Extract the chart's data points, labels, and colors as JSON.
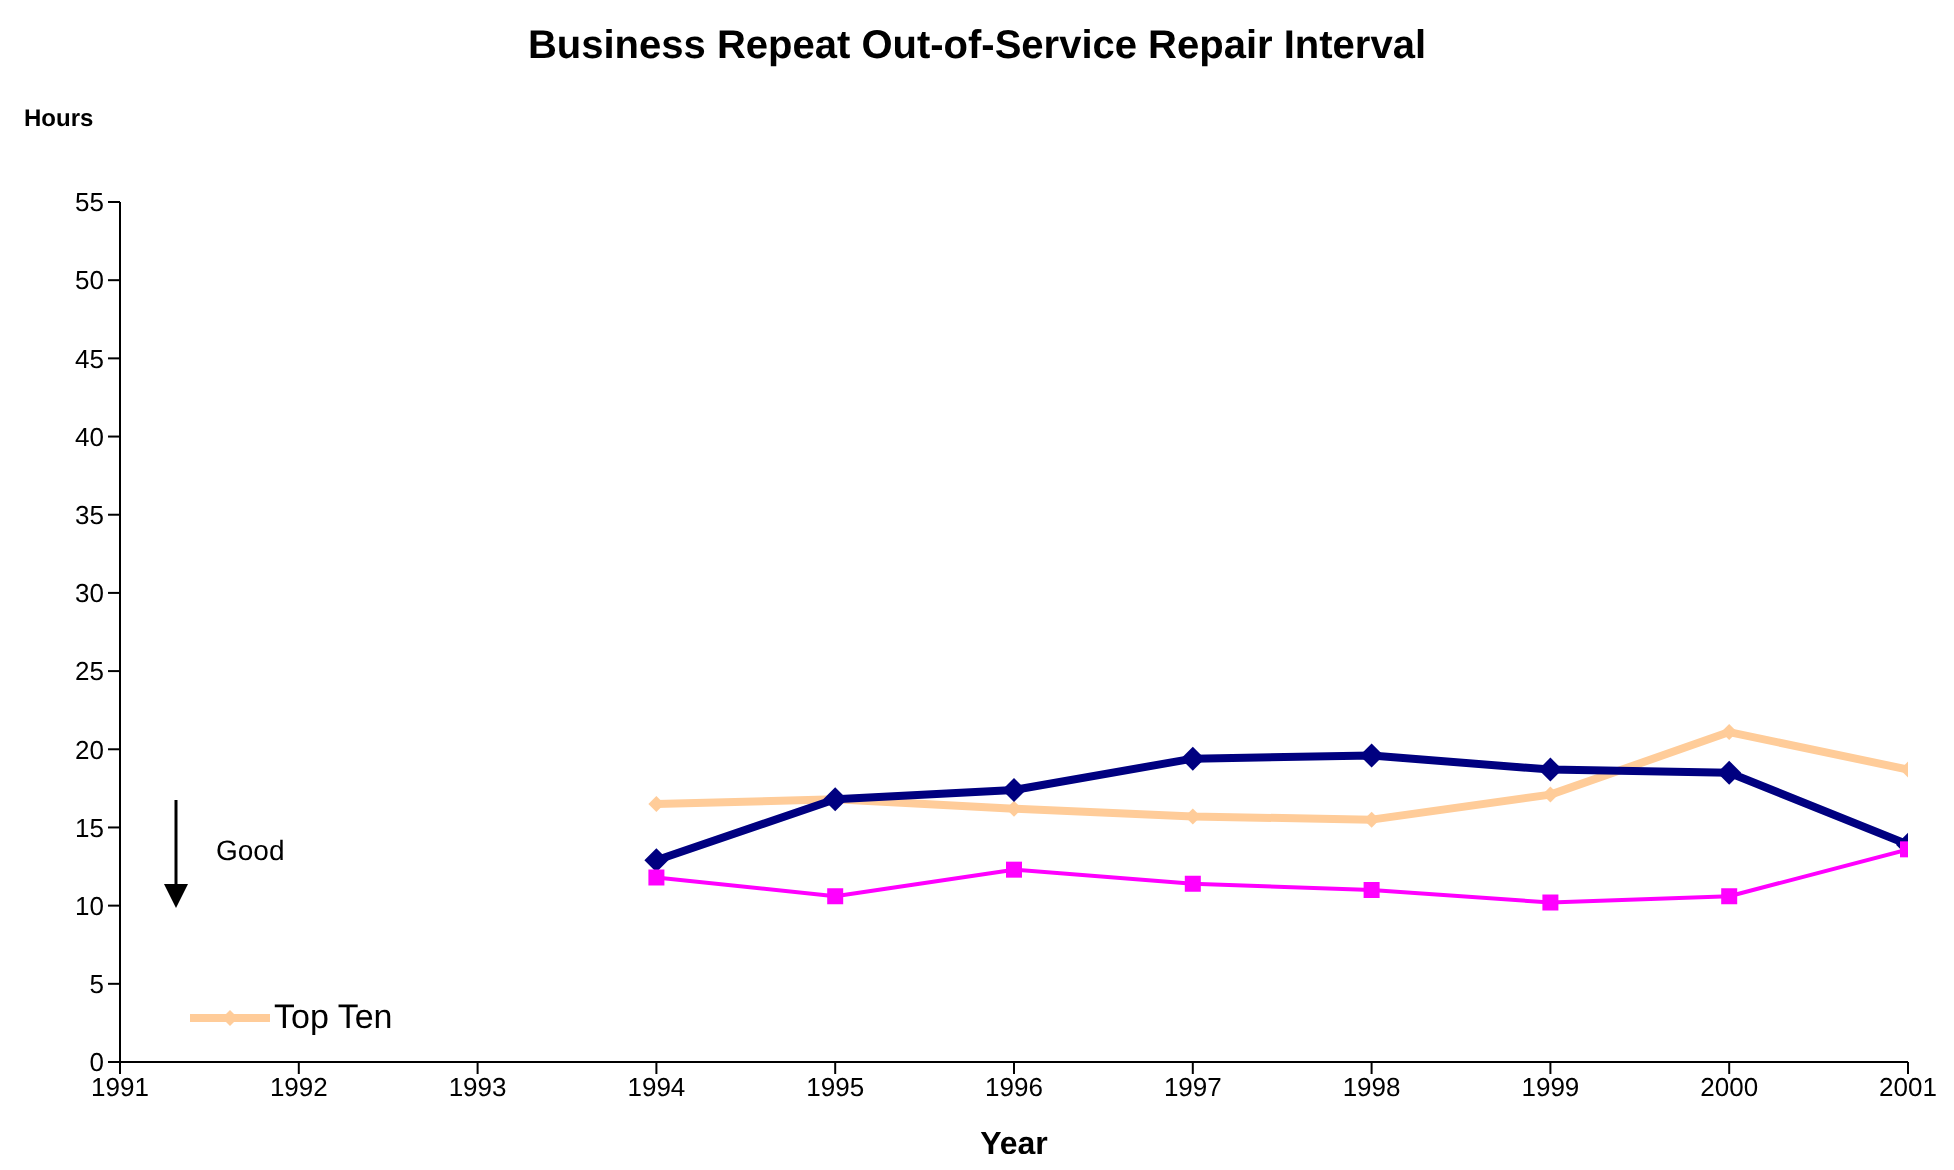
{
  "chart_data": {
    "type": "line",
    "title": "Business Repeat Out-of-Service Repair Interval",
    "xlabel": "Year",
    "ylabel": "Hours",
    "annotations": [
      "Good"
    ],
    "x": [
      1994,
      1995,
      1996,
      1997,
      1998,
      1999,
      2000,
      2001
    ],
    "xlim": [
      1991,
      2001
    ],
    "xticks": [
      1991,
      1992,
      1993,
      1994,
      1995,
      1996,
      1997,
      1998,
      1999,
      2000,
      2001
    ],
    "ylim": [
      0,
      55
    ],
    "yticks": [
      0,
      5,
      10,
      15,
      20,
      25,
      30,
      35,
      40,
      45,
      50,
      55
    ],
    "grid": false,
    "legend": "bottom left",
    "series": [
      {
        "color": "#000080",
        "marker": "diamond",
        "values": [
          12.9,
          16.8,
          17.4,
          19.4,
          19.6,
          18.7,
          18.5,
          13.9
        ]
      },
      {
        "name": "Top Ten",
        "color": "#ffcc99",
        "marker": "diamond",
        "values": [
          16.5,
          16.8,
          16.2,
          15.7,
          15.5,
          17.1,
          21.1,
          18.7
        ]
      },
      {
        "color": "#ff00ff",
        "marker": "square",
        "values": [
          11.8,
          10.6,
          12.3,
          11.4,
          11.0,
          10.2,
          10.6,
          13.6
        ]
      }
    ]
  }
}
